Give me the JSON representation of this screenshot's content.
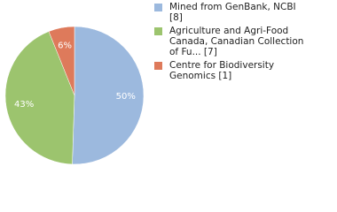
{
  "chart_data": {
    "type": "pie",
    "categories": [
      "Mined from GenBank, NCBI [8]",
      "Agriculture and Agri-Food Canada, Canadian Collection of Fu... [7]",
      "Centre for Biodiversity Genomics [1]"
    ],
    "values": [
      50,
      43,
      6
    ],
    "value_labels": [
      "50%",
      "43%",
      "6%"
    ],
    "colors": [
      "#9cb9de",
      "#9cc46e",
      "#de7a5b"
    ]
  }
}
